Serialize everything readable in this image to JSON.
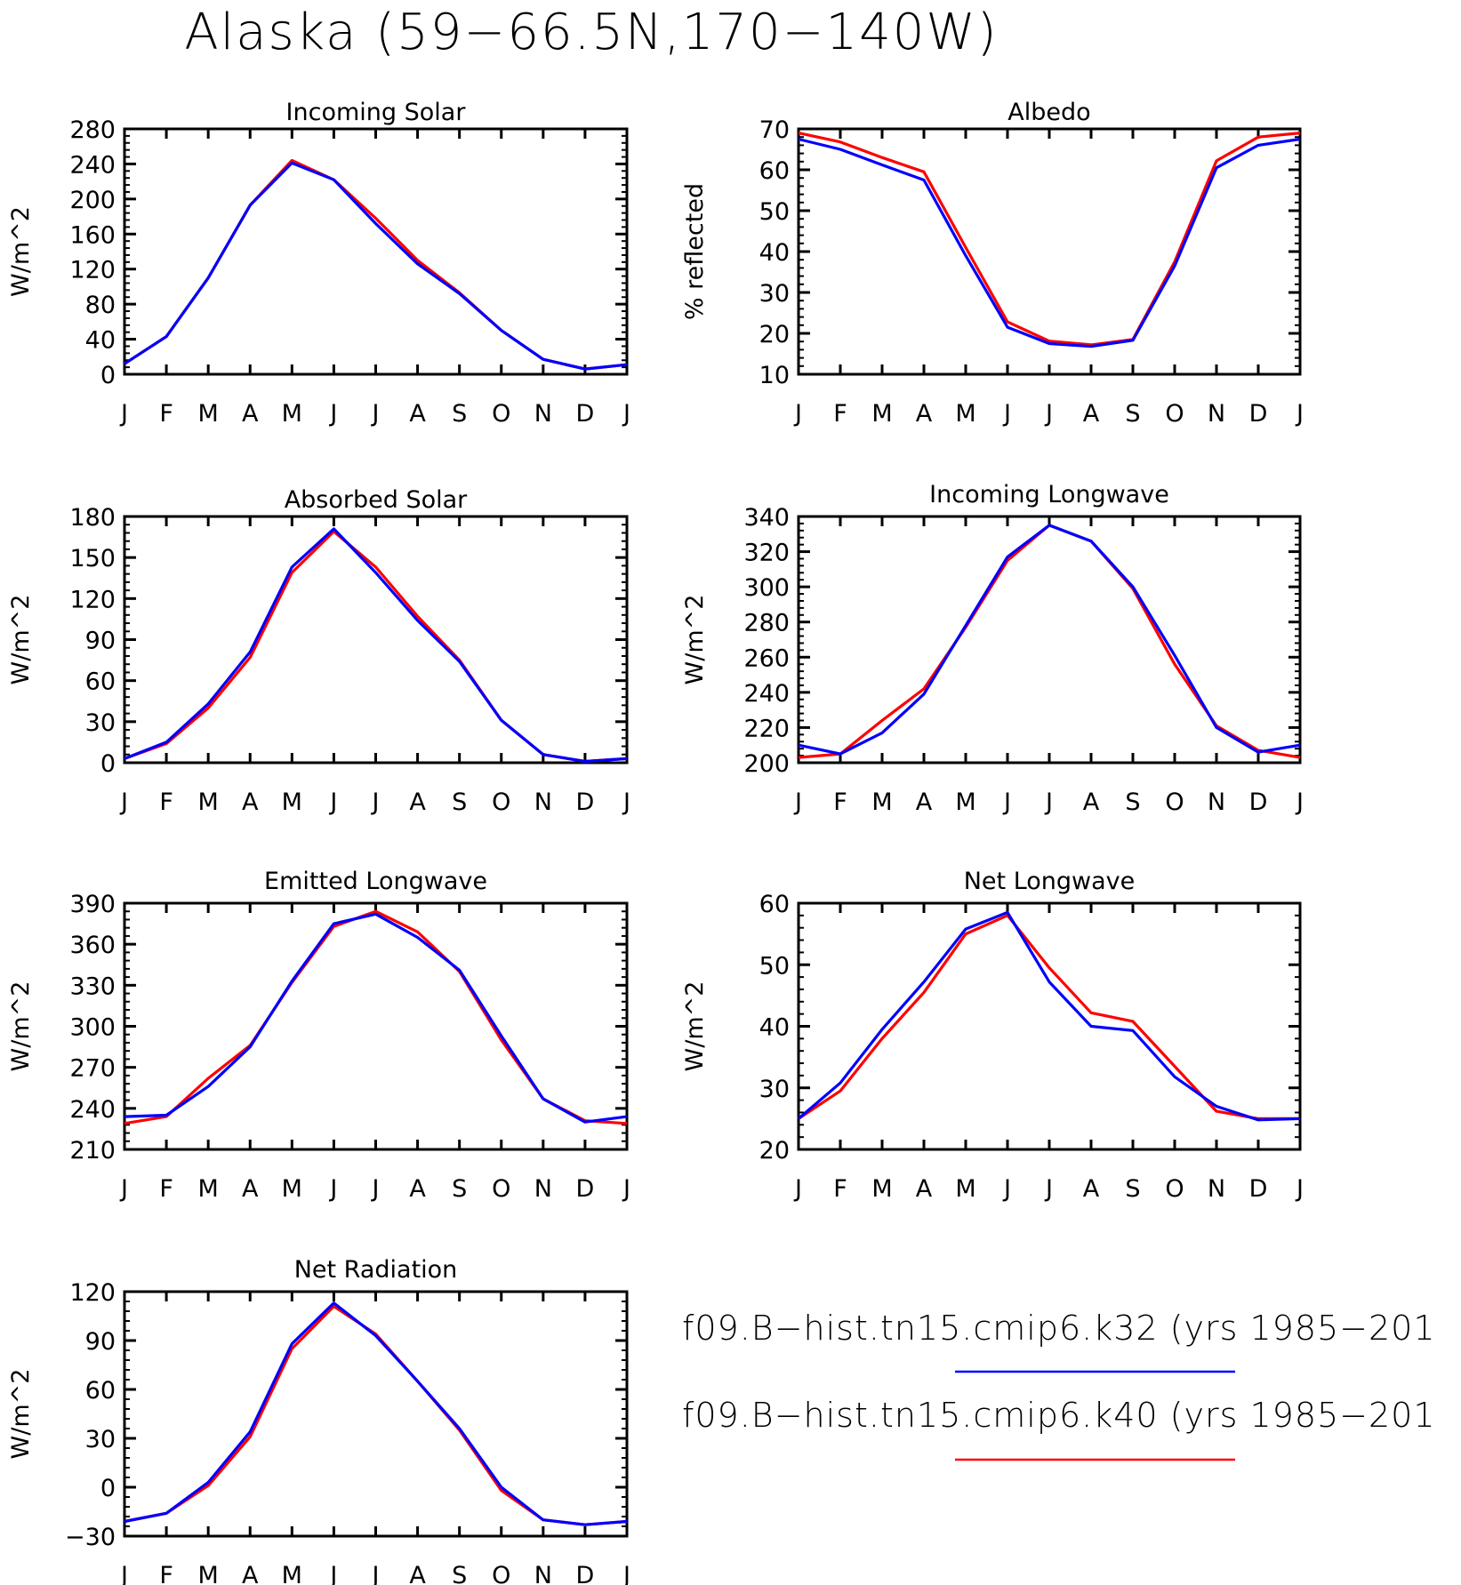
{
  "title": "Alaska (59−66.5N,170−140W)",
  "months": [
    "J",
    "F",
    "M",
    "A",
    "M",
    "J",
    "J",
    "A",
    "S",
    "O",
    "N",
    "D",
    "J"
  ],
  "colors": {
    "k32": "#0000ff",
    "k40": "#ff0000"
  },
  "legend": [
    {
      "label": "f09.B−hist.tn15.cmip6.k32 (yrs 1985−201",
      "color": "#0000ff"
    },
    {
      "label": "f09.B−hist.tn15.cmip6.k40 (yrs 1985−201",
      "color": "#ff0000"
    }
  ],
  "chart_data": [
    {
      "type": "line",
      "title": "Incoming Solar",
      "ylabel": "W/m^2",
      "ylim": [
        0,
        280
      ],
      "yticks": [
        0,
        40,
        80,
        120,
        160,
        200,
        240,
        280
      ],
      "x": [
        "J",
        "F",
        "M",
        "A",
        "M",
        "J",
        "J",
        "A",
        "S",
        "O",
        "N",
        "D",
        "J"
      ],
      "series": [
        {
          "key": "k40",
          "values": [
            12,
            43,
            110,
            193,
            244,
            222,
            178,
            130,
            93,
            50,
            17,
            6,
            11
          ]
        },
        {
          "key": "k32",
          "values": [
            12,
            43,
            110,
            193,
            241,
            222,
            172,
            126,
            92,
            50,
            17,
            6,
            11
          ]
        }
      ]
    },
    {
      "type": "line",
      "title": "Albedo",
      "ylabel": "% reflected",
      "ylim": [
        10,
        70
      ],
      "yticks": [
        10,
        20,
        30,
        40,
        50,
        60,
        70
      ],
      "x": [
        "J",
        "F",
        "M",
        "A",
        "M",
        "J",
        "J",
        "A",
        "S",
        "O",
        "N",
        "D",
        "J"
      ],
      "series": [
        {
          "key": "k40",
          "values": [
            69,
            66.8,
            63,
            59.5,
            41,
            22.8,
            18.1,
            17.2,
            18.5,
            37.5,
            62.2,
            68,
            69
          ]
        },
        {
          "key": "k32",
          "values": [
            67.5,
            65,
            61.2,
            57.5,
            39,
            21.5,
            17.5,
            16.8,
            18.3,
            36.5,
            60.5,
            66,
            67.5
          ]
        }
      ]
    },
    {
      "type": "line",
      "title": "Absorbed Solar",
      "ylabel": "W/m^2",
      "ylim": [
        0,
        180
      ],
      "yticks": [
        0,
        30,
        60,
        90,
        120,
        150,
        180
      ],
      "x": [
        "J",
        "F",
        "M",
        "A",
        "M",
        "J",
        "J",
        "A",
        "S",
        "O",
        "N",
        "D",
        "J"
      ],
      "series": [
        {
          "key": "k40",
          "values": [
            3,
            14,
            40,
            77,
            139,
            169,
            143,
            107,
            75,
            31,
            6,
            1,
            3
          ]
        },
        {
          "key": "k32",
          "values": [
            3,
            15,
            43,
            81,
            143,
            171,
            139,
            104,
            74,
            31,
            6,
            1,
            3
          ]
        }
      ]
    },
    {
      "type": "line",
      "title": "Incoming Longwave",
      "ylabel": "W/m^2",
      "ylim": [
        200,
        340
      ],
      "yticks": [
        200,
        220,
        240,
        260,
        280,
        300,
        320,
        340
      ],
      "x": [
        "J",
        "F",
        "M",
        "A",
        "M",
        "J",
        "J",
        "A",
        "S",
        "O",
        "N",
        "D",
        "J"
      ],
      "series": [
        {
          "key": "k40",
          "values": [
            203,
            205,
            224,
            242,
            277,
            315,
            335,
            326,
            299,
            256,
            221,
            207,
            203
          ]
        },
        {
          "key": "k32",
          "values": [
            210,
            205,
            217,
            239,
            278,
            317,
            335,
            326,
            300,
            261,
            220,
            206,
            210
          ]
        }
      ]
    },
    {
      "type": "line",
      "title": "Emitted Longwave",
      "ylabel": "W/m^2",
      "ylim": [
        210,
        390
      ],
      "yticks": [
        210,
        240,
        270,
        300,
        330,
        360,
        390
      ],
      "x": [
        "J",
        "F",
        "M",
        "A",
        "M",
        "J",
        "J",
        "A",
        "S",
        "O",
        "N",
        "D",
        "J"
      ],
      "series": [
        {
          "key": "k40",
          "values": [
            229,
            234,
            262,
            286,
            332,
            373,
            384,
            369,
            340,
            290,
            247,
            231,
            229
          ]
        },
        {
          "key": "k32",
          "values": [
            234,
            235,
            256,
            285,
            333,
            375,
            382,
            365,
            341,
            293,
            247,
            230,
            234
          ]
        }
      ]
    },
    {
      "type": "line",
      "title": "Net Longwave",
      "ylabel": "W/m^2",
      "ylim": [
        20,
        60
      ],
      "yticks": [
        20,
        30,
        40,
        50,
        60
      ],
      "x": [
        "J",
        "F",
        "M",
        "A",
        "M",
        "J",
        "J",
        "A",
        "S",
        "O",
        "N",
        "D",
        "J"
      ],
      "series": [
        {
          "key": "k40",
          "values": [
            25,
            29.5,
            38,
            45.5,
            55,
            58,
            49.5,
            42.2,
            40.8,
            33.5,
            26.2,
            25,
            25
          ]
        },
        {
          "key": "k32",
          "values": [
            25,
            30.8,
            39.5,
            47.2,
            55.8,
            58.5,
            47.2,
            40,
            39.3,
            31.8,
            27,
            24.8,
            25
          ]
        }
      ]
    },
    {
      "type": "line",
      "title": "Net Radiation",
      "ylabel": "W/m^2",
      "ylim": [
        -30,
        120
      ],
      "yticks": [
        -30,
        0,
        30,
        60,
        90,
        120
      ],
      "x": [
        "J",
        "F",
        "M",
        "A",
        "M",
        "J",
        "J",
        "A",
        "S",
        "O",
        "N",
        "D",
        "J"
      ],
      "series": [
        {
          "key": "k40",
          "values": [
            -21,
            -16,
            1,
            31,
            85,
            111,
            94,
            65,
            35,
            -2,
            -20,
            -23,
            -21
          ]
        },
        {
          "key": "k32",
          "values": [
            -21,
            -16,
            3,
            34,
            88,
            113,
            93,
            65,
            36,
            0,
            -20,
            -23,
            -21
          ]
        }
      ]
    }
  ]
}
